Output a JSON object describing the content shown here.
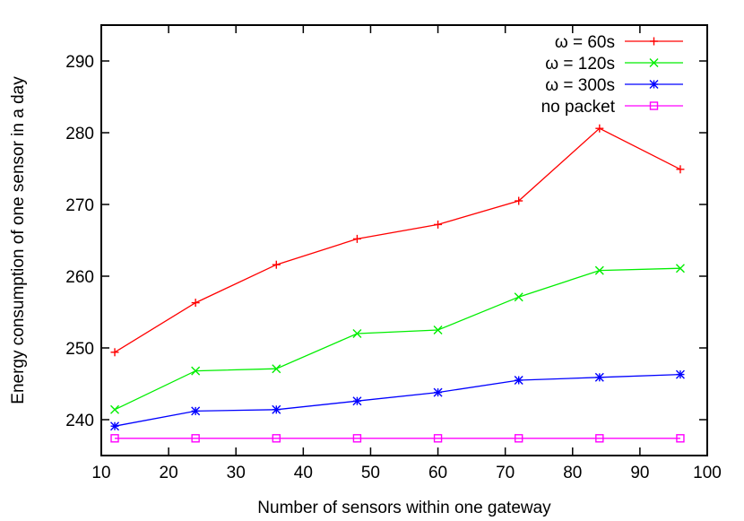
{
  "chart_data": {
    "type": "line",
    "title": "",
    "xlabel": "Number of sensors within one gateway",
    "ylabel": "Energy consumption of one sensor in a day",
    "xlim": [
      10,
      100
    ],
    "ylim": [
      235,
      295
    ],
    "xticks": [
      10,
      20,
      30,
      40,
      50,
      60,
      70,
      80,
      90,
      100
    ],
    "yticks": [
      240,
      250,
      260,
      270,
      280,
      290
    ],
    "grid": false,
    "legend_position": "top-right",
    "x": [
      12,
      24,
      36,
      48,
      60,
      72,
      84,
      96
    ],
    "series": [
      {
        "name": "ω =  60s",
        "color": "#ff0000",
        "marker": "plus",
        "values": [
          249.4,
          256.3,
          261.6,
          265.2,
          267.2,
          270.5,
          280.6,
          274.9
        ]
      },
      {
        "name": "ω = 120s",
        "color": "#00ee00",
        "marker": "cross",
        "values": [
          241.4,
          246.8,
          247.1,
          252.0,
          252.5,
          257.1,
          260.8,
          261.1
        ]
      },
      {
        "name": "ω = 300s",
        "color": "#0000ff",
        "marker": "star",
        "values": [
          239.1,
          241.2,
          241.4,
          242.6,
          243.8,
          245.5,
          245.9,
          246.3
        ]
      },
      {
        "name": "no packet",
        "color": "#ff00ff",
        "marker": "square",
        "values": [
          237.4,
          237.4,
          237.4,
          237.4,
          237.4,
          237.4,
          237.4,
          237.4
        ]
      }
    ]
  }
}
